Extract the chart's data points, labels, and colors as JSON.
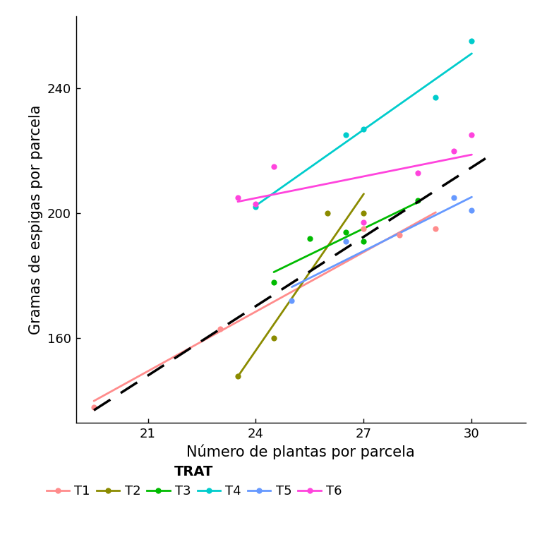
{
  "treatments": [
    "T1",
    "T2",
    "T3",
    "T4",
    "T5",
    "T6"
  ],
  "colors": {
    "T1": "#FF8C8C",
    "T2": "#8B8B00",
    "T3": "#00BB00",
    "T4": "#00CCCC",
    "T5": "#6699FF",
    "T6": "#FF44DD"
  },
  "points": {
    "T1": [
      [
        19.5,
        138
      ],
      [
        23,
        163
      ],
      [
        27,
        195
      ],
      [
        28,
        193
      ],
      [
        29,
        195
      ]
    ],
    "T2": [
      [
        23.5,
        148
      ],
      [
        24.5,
        160
      ],
      [
        26,
        200
      ],
      [
        27,
        200
      ]
    ],
    "T3": [
      [
        24.5,
        178
      ],
      [
        25.5,
        192
      ],
      [
        26.5,
        194
      ],
      [
        27,
        191
      ],
      [
        28.5,
        204
      ]
    ],
    "T4": [
      [
        24,
        202
      ],
      [
        26.5,
        225
      ],
      [
        27,
        227
      ],
      [
        29,
        237
      ],
      [
        30,
        255
      ]
    ],
    "T5": [
      [
        25,
        172
      ],
      [
        26.5,
        191
      ],
      [
        29.5,
        205
      ],
      [
        30,
        201
      ]
    ],
    "T6": [
      [
        23.5,
        205
      ],
      [
        24,
        203
      ],
      [
        24.5,
        215
      ],
      [
        27,
        197
      ],
      [
        28.5,
        213
      ],
      [
        29.5,
        220
      ],
      [
        30,
        225
      ]
    ]
  },
  "global_line": {
    "x_start": 19.5,
    "x_end": 31,
    "slope": 7.3,
    "intercept": -4
  },
  "xlim": [
    19,
    31.5
  ],
  "ylim": [
    133,
    263
  ],
  "xlabel": "Número de plantas por parcela",
  "ylabel": "Gramas de espigas por parcela",
  "xticks": [
    21,
    24,
    27,
    30
  ],
  "yticks": [
    160,
    200,
    240
  ],
  "legend_title": "TRAT",
  "figsize": [
    7.68,
    7.68
  ],
  "dpi": 100
}
